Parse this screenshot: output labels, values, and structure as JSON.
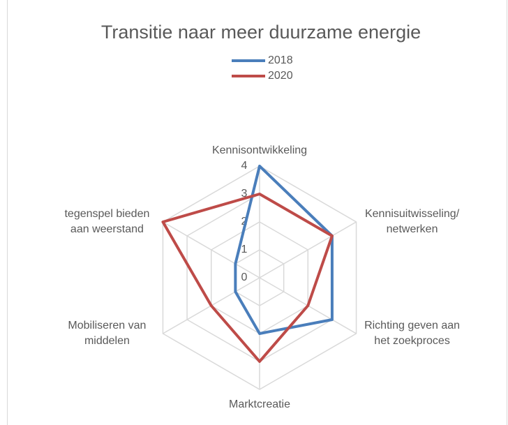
{
  "chart_data": {
    "type": "radar",
    "title": "Transitie naar meer duurzame energie",
    "categories": [
      "Kennisontwikkeling",
      "Kennisuitwisseling/\nnetwerken",
      "Richting geven aan\nhet zoekproces",
      "Marktcreatie",
      "Mobiliseren van\nmiddelen",
      "tegenspel bieden\naan weerstand"
    ],
    "series": [
      {
        "name": "2018",
        "color": "#4a7ebb",
        "values": [
          4,
          3,
          3,
          2,
          1,
          1
        ]
      },
      {
        "name": "2020",
        "color": "#be4b48",
        "values": [
          3,
          3,
          2,
          3,
          2,
          4
        ]
      }
    ],
    "ylim": [
      0,
      4
    ],
    "yticks": [
      0,
      1,
      2,
      3,
      4
    ],
    "grid": true,
    "legend": "top"
  }
}
